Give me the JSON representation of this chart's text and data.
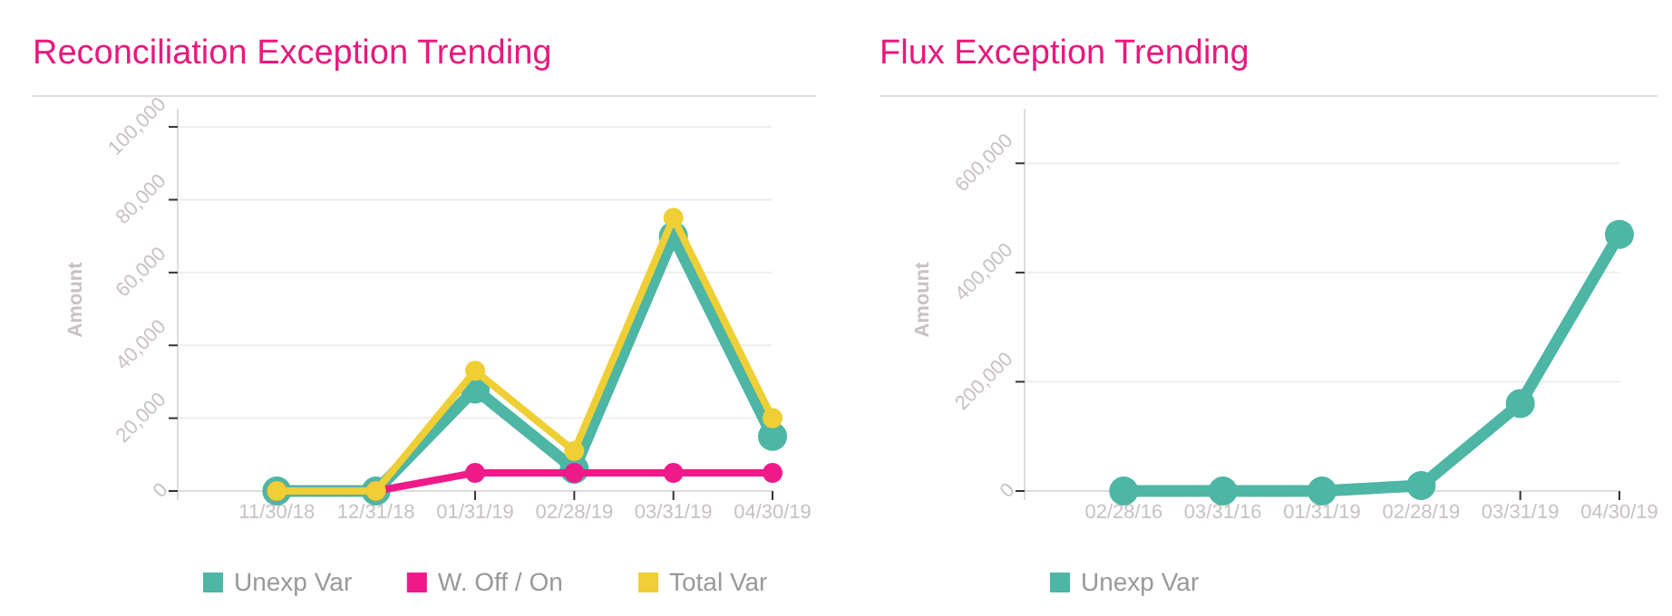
{
  "chart_data": [
    {
      "type": "line",
      "title": "Reconciliation Exception Trending",
      "ylabel": "Amount",
      "categories": [
        "11/30/18",
        "12/31/18",
        "01/31/19",
        "02/28/19",
        "03/31/19",
        "04/30/19"
      ],
      "series": [
        {
          "name": "Unexp Var",
          "color": "#4db6a4",
          "values": [
            0,
            0,
            28000,
            6000,
            70000,
            15000
          ]
        },
        {
          "name": "W. Off / On",
          "color": "#ee1a8a",
          "values": [
            0,
            0,
            5000,
            5000,
            5000,
            5000
          ]
        },
        {
          "name": "Total Var",
          "color": "#efcf35",
          "values": [
            0,
            0,
            33000,
            11000,
            75000,
            20000
          ]
        }
      ],
      "ylim": [
        0,
        105000
      ],
      "yticks": [
        0,
        {
          "value": 20000,
          "label": "20,000"
        },
        {
          "value": 40000,
          "label": "40,000"
        },
        {
          "value": 60000,
          "label": "60,000"
        },
        {
          "value": 80000,
          "label": "80,000"
        },
        {
          "value": 100000,
          "label": "100,000"
        }
      ],
      "grid": "y",
      "legend": "bottom",
      "marker": "circle",
      "line_style": "solid"
    },
    {
      "type": "line",
      "title": "Flux Exception Trending",
      "ylabel": "Amount",
      "categories": [
        "02/28/16",
        "03/31/16",
        "01/31/19",
        "02/28/19",
        "03/31/19",
        "04/30/19"
      ],
      "series": [
        {
          "name": "Unexp Var",
          "color": "#4db6a4",
          "values": [
            0,
            0,
            0,
            10000,
            160000,
            470000
          ]
        }
      ],
      "ylim": [
        0,
        700000
      ],
      "yticks": [
        0,
        {
          "value": 200000,
          "label": "200,000"
        },
        {
          "value": 400000,
          "label": "400,000"
        },
        {
          "value": 600000,
          "label": "600,000"
        }
      ],
      "grid": "y",
      "legend": "bottom",
      "marker": "circle",
      "line_style": "solid"
    }
  ]
}
